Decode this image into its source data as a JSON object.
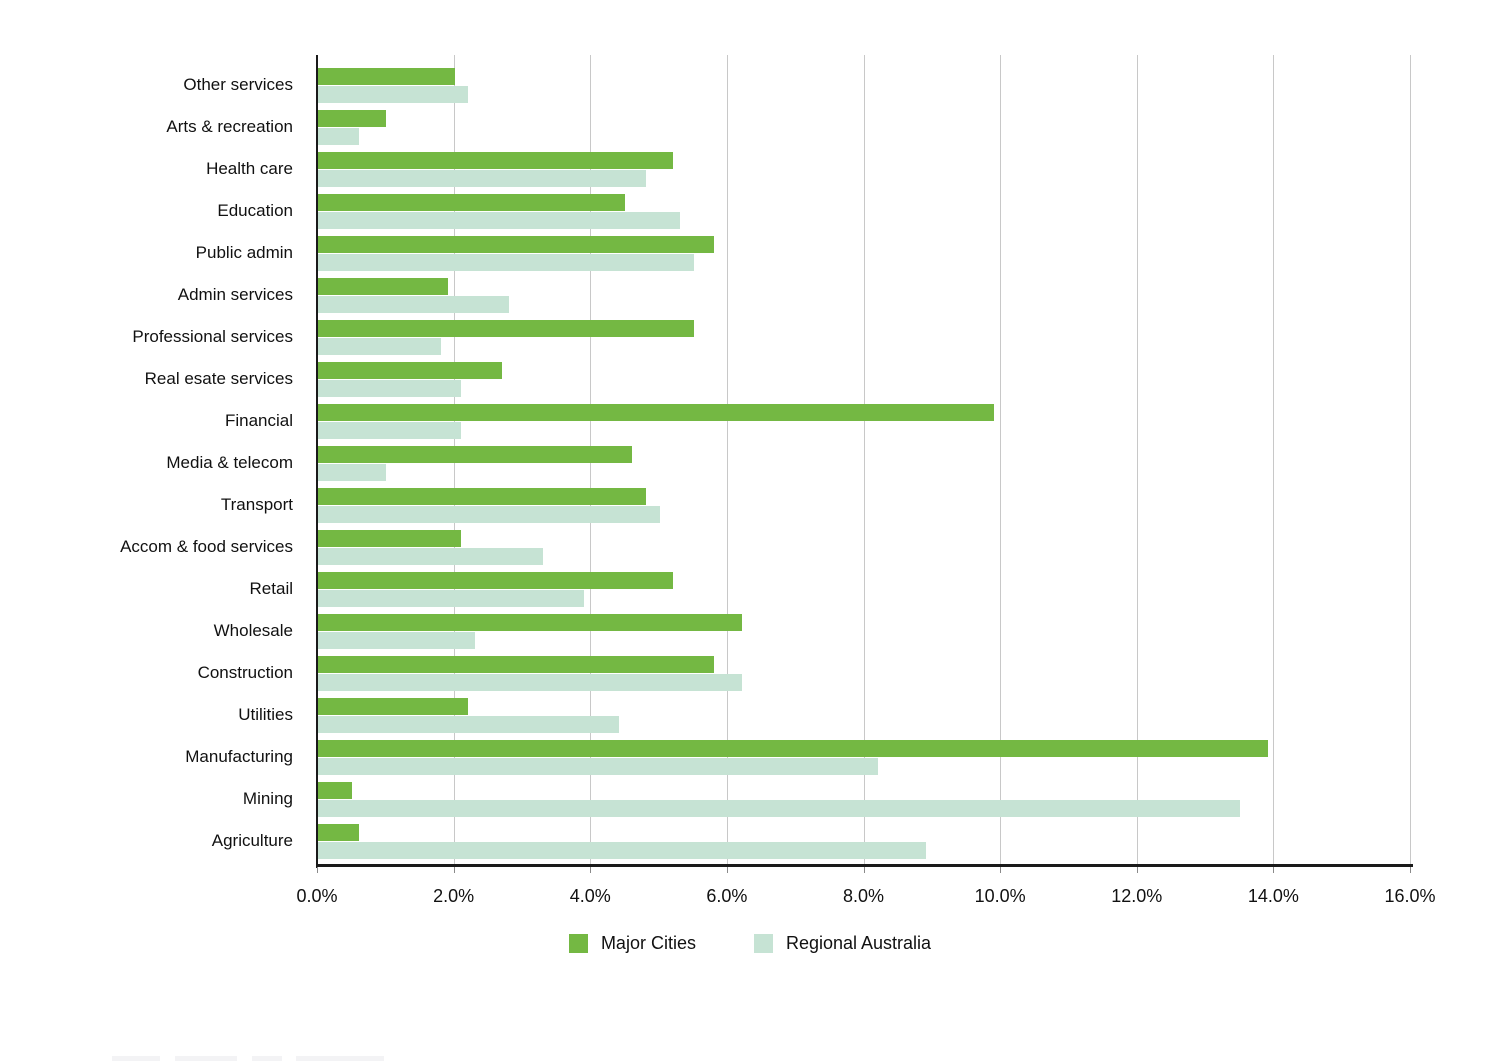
{
  "chart_data": {
    "type": "bar",
    "orientation": "horizontal",
    "title": "",
    "xlabel": "",
    "ylabel": "",
    "unit": "%",
    "xlim": [
      0,
      16
    ],
    "x_tick_step": 2,
    "x_tick_labels": [
      "0.0%",
      "2.0%",
      "4.0%",
      "6.0%",
      "8.0%",
      "10.0%",
      "12.0%",
      "14.0%",
      "16.0%"
    ],
    "grid": "vertical",
    "legend_position": "bottom",
    "categories": [
      "Other services",
      "Arts & recreation",
      "Health care",
      "Education",
      "Public admin",
      "Admin services",
      "Professional services",
      "Real esate services",
      "Financial",
      "Media & telecom",
      "Transport",
      "Accom & food services",
      "Retail",
      "Wholesale",
      "Construction",
      "Utilities",
      "Manufacturing",
      "Mining",
      "Agriculture"
    ],
    "series": [
      {
        "name": "Major Cities",
        "color": "#74b843",
        "values": [
          2.0,
          1.0,
          5.2,
          4.5,
          5.8,
          1.9,
          5.5,
          2.7,
          9.9,
          4.6,
          4.8,
          2.1,
          5.2,
          6.2,
          5.8,
          2.2,
          13.9,
          0.5,
          0.6
        ]
      },
      {
        "name": "Regional Australia",
        "color": "#c6e3d4",
        "values": [
          2.2,
          0.6,
          4.8,
          5.3,
          5.5,
          2.8,
          1.8,
          2.1,
          2.1,
          1.0,
          5.0,
          3.3,
          3.9,
          2.3,
          6.2,
          4.4,
          8.2,
          13.5,
          8.9
        ]
      }
    ],
    "axis_colors": {
      "axis_line": "#1a1a1a",
      "gridline": "#c8c8c8",
      "tick": "#8a8a8a",
      "text": "#111111"
    }
  }
}
